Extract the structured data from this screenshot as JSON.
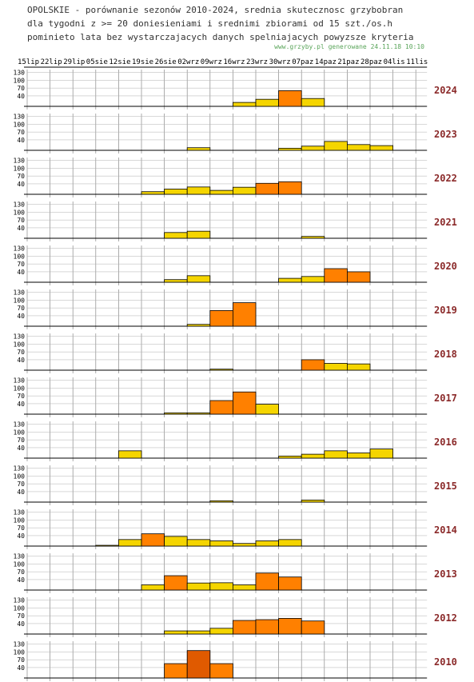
{
  "header": {
    "line1": "OPOLSKIE - porównanie sezonów 2010-2024, srednia skutecznosc grzybobran",
    "line2": "dla tygodni z >= 20 doniesieniami i srednimi zbiorami od 15 szt./os.h",
    "line3": "pominieto lata bez wystarczajacych danych spelniajacych powyzsze kryteria"
  },
  "watermark": "www.grzyby.pl generowane 24.11.18 10:10",
  "colors": {
    "low": "#f5d500",
    "mid": "#ff8000",
    "high": "#e05a00",
    "yearLabel": "#8b2a2a",
    "grid": "#888888"
  },
  "chart_data": {
    "type": "bar",
    "x_ticks": [
      "15lip",
      "22lip",
      "29lip",
      "05sie",
      "12sie",
      "19sie",
      "26sie",
      "02wrz",
      "09wrz",
      "16wrz",
      "23wrz",
      "30wrz",
      "07paz",
      "14paz",
      "21paz",
      "28paz",
      "04lis",
      "11lis"
    ],
    "y_ticks": [
      40,
      70,
      100,
      130
    ],
    "ylim": [
      0,
      150
    ],
    "panels": [
      {
        "year": "2024",
        "bars": [
          [
            9.5,
            15
          ],
          [
            10.5,
            27
          ],
          [
            11.5,
            60
          ],
          [
            12.5,
            30
          ]
        ]
      },
      {
        "year": "2023",
        "bars": [
          [
            7.5,
            10
          ],
          [
            11.5,
            8
          ],
          [
            12.5,
            16
          ],
          [
            13.5,
            34
          ],
          [
            14.5,
            22
          ],
          [
            15.5,
            18
          ]
        ]
      },
      {
        "year": "2022",
        "bars": [
          [
            5.5,
            10
          ],
          [
            6.5,
            20
          ],
          [
            7.5,
            28
          ],
          [
            8.5,
            15
          ],
          [
            9.5,
            27
          ],
          [
            10.5,
            42
          ],
          [
            11.5,
            48
          ]
        ]
      },
      {
        "year": "2021",
        "bars": [
          [
            6.5,
            22
          ],
          [
            7.5,
            27
          ],
          [
            12.5,
            7
          ]
        ]
      },
      {
        "year": "2020",
        "bars": [
          [
            6.5,
            10
          ],
          [
            7.5,
            25
          ],
          [
            11.5,
            15
          ],
          [
            12.5,
            22
          ],
          [
            13.5,
            52
          ],
          [
            14.5,
            40
          ]
        ]
      },
      {
        "year": "2019",
        "bars": [
          [
            7.5,
            7
          ],
          [
            8.5,
            60
          ],
          [
            9.5,
            90
          ]
        ]
      },
      {
        "year": "2018",
        "bars": [
          [
            8.5,
            4
          ],
          [
            12.5,
            40
          ],
          [
            13.5,
            26
          ],
          [
            14.5,
            24
          ]
        ]
      },
      {
        "year": "2017",
        "bars": [
          [
            6.5,
            5
          ],
          [
            7.5,
            5
          ],
          [
            8.5,
            52
          ],
          [
            9.5,
            85
          ],
          [
            10.5,
            38
          ]
        ]
      },
      {
        "year": "2016",
        "bars": [
          [
            4.5,
            28
          ],
          [
            11.5,
            8
          ],
          [
            12.5,
            15
          ],
          [
            13.5,
            28
          ],
          [
            14.5,
            20
          ],
          [
            15.5,
            35
          ]
        ]
      },
      {
        "year": "2015",
        "bars": [
          [
            8.5,
            5
          ],
          [
            12.5,
            8
          ]
        ]
      },
      {
        "year": "2014",
        "bars": [
          [
            3.5,
            3
          ],
          [
            4.5,
            25
          ],
          [
            5.5,
            47
          ],
          [
            6.5,
            37
          ],
          [
            7.5,
            25
          ],
          [
            8.5,
            20
          ],
          [
            9.5,
            10
          ],
          [
            10.5,
            20
          ],
          [
            11.5,
            25
          ]
        ]
      },
      {
        "year": "2013",
        "bars": [
          [
            5.5,
            20
          ],
          [
            6.5,
            55
          ],
          [
            7.5,
            27
          ],
          [
            8.5,
            28
          ],
          [
            9.5,
            20
          ],
          [
            10.5,
            65
          ],
          [
            11.5,
            50
          ]
        ]
      },
      {
        "year": "2012",
        "bars": [
          [
            6.5,
            12
          ],
          [
            7.5,
            12
          ],
          [
            8.5,
            22
          ],
          [
            9.5,
            52
          ],
          [
            10.5,
            55
          ],
          [
            11.5,
            60
          ],
          [
            12.5,
            50
          ]
        ]
      },
      {
        "year": "2010",
        "bars": [
          [
            6.5,
            55
          ],
          [
            7.5,
            105
          ],
          [
            8.5,
            55
          ]
        ]
      }
    ]
  }
}
